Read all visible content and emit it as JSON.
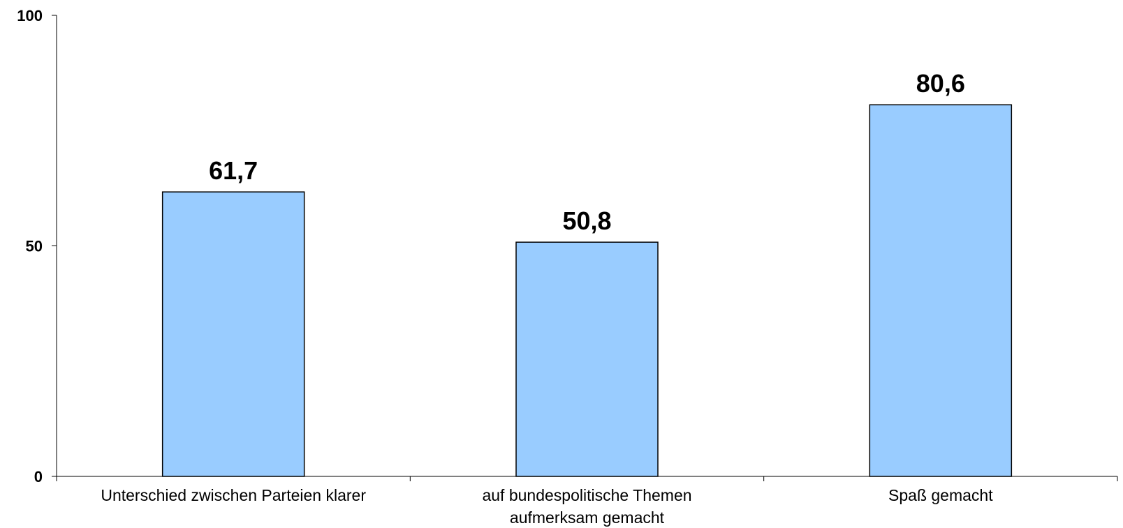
{
  "chart_data": {
    "type": "bar",
    "categories": [
      [
        "Unterschied zwischen Parteien klarer"
      ],
      [
        "auf bundespolitische Themen",
        "aufmerksam gemacht"
      ],
      [
        "Spaß gemacht"
      ]
    ],
    "values": [
      61.7,
      50.8,
      80.6
    ],
    "data_labels": [
      "61,7",
      "50,8",
      "80,6"
    ],
    "yticks": [
      0,
      50,
      100
    ],
    "ytick_labels": [
      "0",
      "50",
      "100"
    ],
    "ylim": [
      0,
      100
    ],
    "title": "",
    "xlabel": "",
    "ylabel": "",
    "grid": false,
    "legend": "none",
    "colors": {
      "bar_fill": "#99ccff",
      "bar_stroke": "#000000",
      "axis": "#000000",
      "text": "#000000"
    }
  }
}
